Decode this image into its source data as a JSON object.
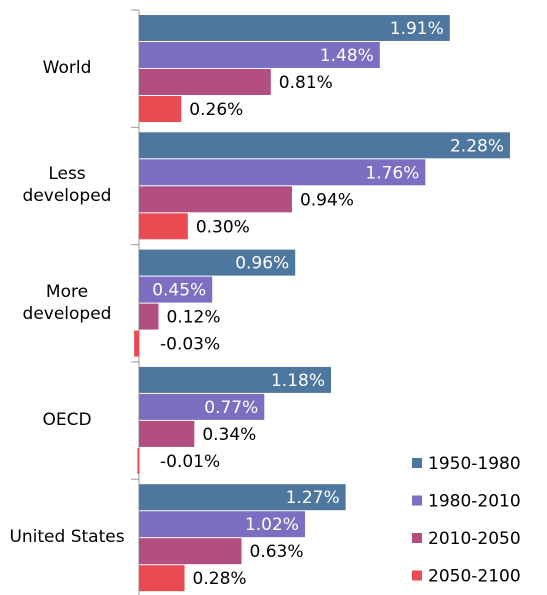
{
  "chart_data": {
    "type": "bar",
    "orientation": "horizontal",
    "categories": [
      "World",
      "Less developed",
      "More developed",
      "OECD",
      "United States"
    ],
    "series": [
      {
        "name": "1950-1980",
        "color": "#4d779e",
        "values": [
          1.91,
          2.28,
          0.96,
          1.18,
          1.27
        ],
        "value_labels": [
          "1.91%",
          "2.28%",
          "0.96%",
          "1.18%",
          "1.27%"
        ]
      },
      {
        "name": "1980-2010",
        "color": "#7c6fc2",
        "values": [
          1.48,
          1.76,
          0.45,
          0.77,
          1.02
        ],
        "value_labels": [
          "1.48%",
          "1.76%",
          "0.45%",
          "0.77%",
          "1.02%"
        ]
      },
      {
        "name": "2010-2050",
        "color": "#b34f80",
        "values": [
          0.81,
          0.94,
          0.12,
          0.34,
          0.63
        ],
        "value_labels": [
          "0.81%",
          "0.94%",
          "0.12%",
          "0.34%",
          "0.63%"
        ]
      },
      {
        "name": "2050-2100",
        "color": "#ea4a52",
        "values": [
          0.26,
          0.3,
          -0.03,
          -0.01,
          0.28
        ],
        "value_labels": [
          "0.26%",
          "0.30%",
          "-0.03%",
          "-0.01%",
          "0.28%"
        ]
      }
    ],
    "legend": "bottom-right"
  }
}
